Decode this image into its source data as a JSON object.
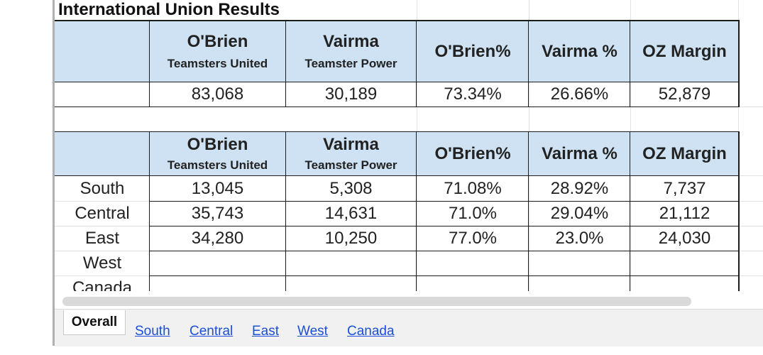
{
  "title": "International Union Results",
  "header": {
    "obrien_name": "O'Brien",
    "obrien_slate": "Teamsters United",
    "vairma_name": "Vairma",
    "vairma_slate": "Teamster Power",
    "obrien_pct": "O'Brien%",
    "vairma_pct": "Vairma %",
    "margin": "OZ Margin"
  },
  "overall": {
    "obrien": "83,068",
    "vairma": "30,189",
    "obrien_pct": "73.34%",
    "vairma_pct": "26.66%",
    "margin": "52,879"
  },
  "regions": [
    {
      "name": "South",
      "obrien": "13,045",
      "vairma": "5,308",
      "obrien_pct": "71.08%",
      "vairma_pct": "28.92%",
      "margin": "7,737"
    },
    {
      "name": "Central",
      "obrien": "35,743",
      "vairma": "14,631",
      "obrien_pct": "71.0%",
      "vairma_pct": "29.04%",
      "margin": "21,112"
    },
    {
      "name": "East",
      "obrien": "34,280",
      "vairma": "10,250",
      "obrien_pct": "77.0%",
      "vairma_pct": "23.0%",
      "margin": "24,030"
    },
    {
      "name": "West",
      "obrien": "",
      "vairma": "",
      "obrien_pct": "",
      "vairma_pct": "",
      "margin": ""
    },
    {
      "name": "Canada",
      "obrien": "",
      "vairma": "",
      "obrien_pct": "",
      "vairma_pct": "",
      "margin": ""
    }
  ],
  "tabs": {
    "active": "Overall",
    "links": [
      "South",
      "Central",
      "East",
      "West",
      "Canada"
    ]
  },
  "colors": {
    "header_fill": "#cfe2f3",
    "link": "#1a4fd6"
  }
}
